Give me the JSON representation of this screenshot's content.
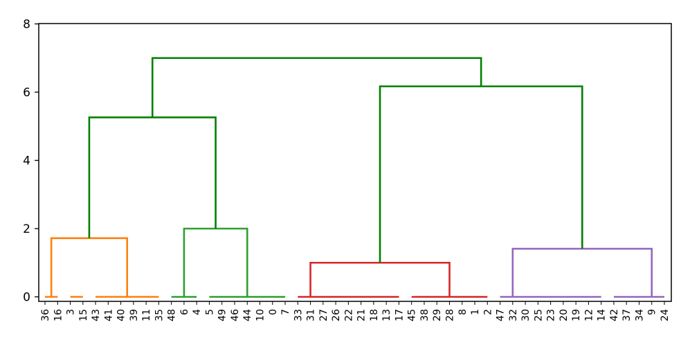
{
  "chart_data": {
    "type": "dendrogram",
    "title": "",
    "xlabel": "",
    "ylabel": "",
    "ylim": [
      0,
      8
    ],
    "yticks": [
      0,
      2,
      4,
      6,
      8
    ],
    "grid": false,
    "leaves": [
      "36",
      "16",
      "3",
      "15",
      "43",
      "41",
      "40",
      "39",
      "11",
      "35",
      "48",
      "6",
      "4",
      "5",
      "49",
      "46",
      "44",
      "10",
      "0",
      "7",
      "33",
      "31",
      "27",
      "26",
      "22",
      "21",
      "18",
      "13",
      "17",
      "45",
      "38",
      "29",
      "28",
      "8",
      "1",
      "2",
      "47",
      "32",
      "30",
      "25",
      "23",
      "20",
      "19",
      "12",
      "14",
      "42",
      "37",
      "34",
      "9",
      "24"
    ],
    "links": [
      {
        "id": "c1a",
        "color": "#ff7f0e",
        "left_x": 0,
        "right_x": 1,
        "left_y": 0,
        "right_y": 0,
        "height": 0
      },
      {
        "id": "c1b",
        "color": "#ff7f0e",
        "left_x": 2,
        "right_x": 3,
        "left_y": 0,
        "right_y": 0,
        "height": 0
      },
      {
        "id": "c1c",
        "color": "#ff7f0e",
        "left_x": 4,
        "right_x": 9,
        "left_y": 0,
        "right_y": 0,
        "height": 0
      },
      {
        "id": "c1",
        "color": "#ff7f0e",
        "left_x": 0.5,
        "right_x": 6.5,
        "left_y": 0,
        "right_y": 0,
        "height": 1.72
      },
      {
        "id": "c2a",
        "color": "#2ca02c",
        "left_x": 10,
        "right_x": 12,
        "left_y": 0,
        "right_y": 0,
        "height": 0
      },
      {
        "id": "c2b",
        "color": "#2ca02c",
        "left_x": 13,
        "right_x": 19,
        "left_y": 0,
        "right_y": 0,
        "height": 0
      },
      {
        "id": "c2",
        "color": "#2ca02c",
        "left_x": 11,
        "right_x": 16,
        "left_y": 0,
        "right_y": 0,
        "height": 2.0
      },
      {
        "id": "c3a",
        "color": "#d62728",
        "left_x": 20,
        "right_x": 28,
        "left_y": 0,
        "right_y": 0,
        "height": 0
      },
      {
        "id": "c3b",
        "color": "#d62728",
        "left_x": 29,
        "right_x": 35,
        "left_y": 0,
        "right_y": 0,
        "height": 0
      },
      {
        "id": "c3",
        "color": "#d62728",
        "left_x": 21,
        "right_x": 32,
        "left_y": 0,
        "right_y": 0,
        "height": 1.0
      },
      {
        "id": "c4a",
        "color": "#9467bd",
        "left_x": 36,
        "right_x": 44,
        "left_y": 0,
        "right_y": 0,
        "height": 0
      },
      {
        "id": "c4b",
        "color": "#9467bd",
        "left_x": 45,
        "right_x": 49,
        "left_y": 0,
        "right_y": 0,
        "height": 0
      },
      {
        "id": "c4",
        "color": "#9467bd",
        "left_x": 37,
        "right_x": 48,
        "left_y": 0,
        "right_y": 0,
        "height": 1.41
      },
      {
        "id": "u12",
        "color": "#008000",
        "left_x": 3.5,
        "right_x": 13.5,
        "left_y": 1.72,
        "right_y": 2.0,
        "height": 5.26
      },
      {
        "id": "u34",
        "color": "#008000",
        "left_x": 26.5,
        "right_x": 42.5,
        "left_y": 1.0,
        "right_y": 1.41,
        "height": 6.17
      },
      {
        "id": "root",
        "color": "#008000",
        "left_x": 8.5,
        "right_x": 34.5,
        "left_y": 5.26,
        "right_y": 6.17,
        "height": 7.0
      }
    ]
  }
}
